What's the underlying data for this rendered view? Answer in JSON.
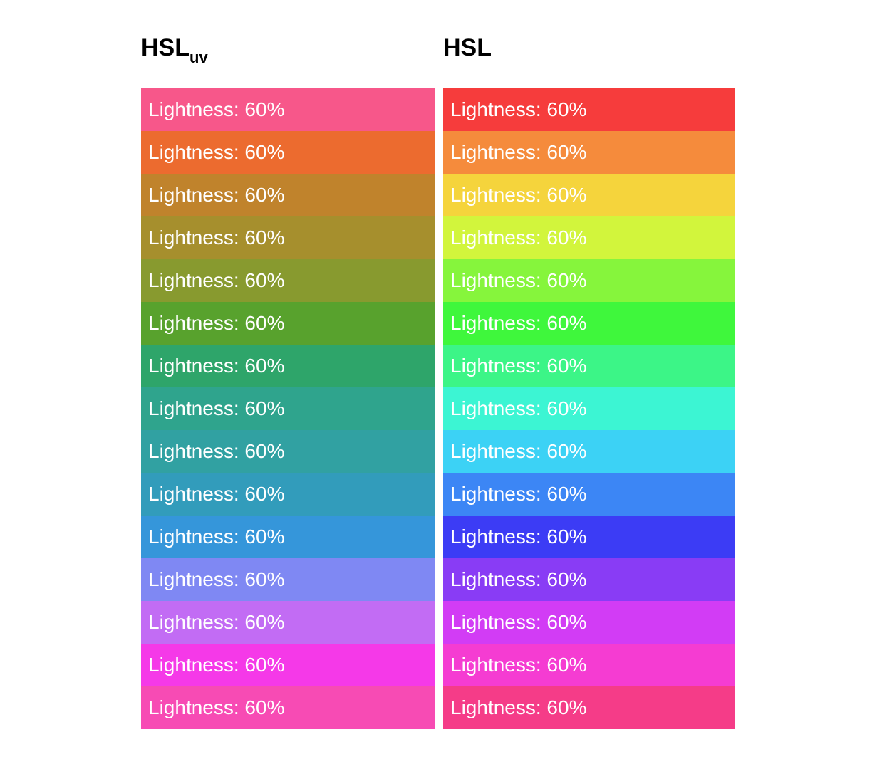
{
  "columns": [
    {
      "title": "HSL",
      "title_sub": "uv",
      "swatches": [
        {
          "label": "Lightness: 60%",
          "color": "#f7578a"
        },
        {
          "label": "Lightness: 60%",
          "color": "#ec6b2f"
        },
        {
          "label": "Lightness: 60%",
          "color": "#c0832c"
        },
        {
          "label": "Lightness: 60%",
          "color": "#a68f2d"
        },
        {
          "label": "Lightness: 60%",
          "color": "#889a2f"
        },
        {
          "label": "Lightness: 60%",
          "color": "#58a22d"
        },
        {
          "label": "Lightness: 60%",
          "color": "#2ea56a"
        },
        {
          "label": "Lightness: 60%",
          "color": "#2fa48d"
        },
        {
          "label": "Lightness: 60%",
          "color": "#31a1a2"
        },
        {
          "label": "Lightness: 60%",
          "color": "#329cbb"
        },
        {
          "label": "Lightness: 60%",
          "color": "#3596da"
        },
        {
          "label": "Lightness: 60%",
          "color": "#7f88f3"
        },
        {
          "label": "Lightness: 60%",
          "color": "#c26cf4"
        },
        {
          "label": "Lightness: 60%",
          "color": "#f539e8"
        },
        {
          "label": "Lightness: 60%",
          "color": "#f74bb4"
        }
      ]
    },
    {
      "title": "HSL",
      "title_sub": "",
      "swatches": [
        {
          "label": "Lightness: 60%",
          "color": "#f63c3c"
        },
        {
          "label": "Lightness: 60%",
          "color": "#f58b3c"
        },
        {
          "label": "Lightness: 60%",
          "color": "#f5d43c"
        },
        {
          "label": "Lightness: 60%",
          "color": "#d2f53c"
        },
        {
          "label": "Lightness: 60%",
          "color": "#86f53c"
        },
        {
          "label": "Lightness: 60%",
          "color": "#3ff73c"
        },
        {
          "label": "Lightness: 60%",
          "color": "#3cf587"
        },
        {
          "label": "Lightness: 60%",
          "color": "#3cf5d3"
        },
        {
          "label": "Lightness: 60%",
          "color": "#3cd2f5"
        },
        {
          "label": "Lightness: 60%",
          "color": "#3c86f5"
        },
        {
          "label": "Lightness: 60%",
          "color": "#3c3cf5"
        },
        {
          "label": "Lightness: 60%",
          "color": "#893cf5"
        },
        {
          "label": "Lightness: 60%",
          "color": "#d23cf5"
        },
        {
          "label": "Lightness: 60%",
          "color": "#f53cd2"
        },
        {
          "label": "Lightness: 60%",
          "color": "#f53c88"
        }
      ]
    }
  ]
}
